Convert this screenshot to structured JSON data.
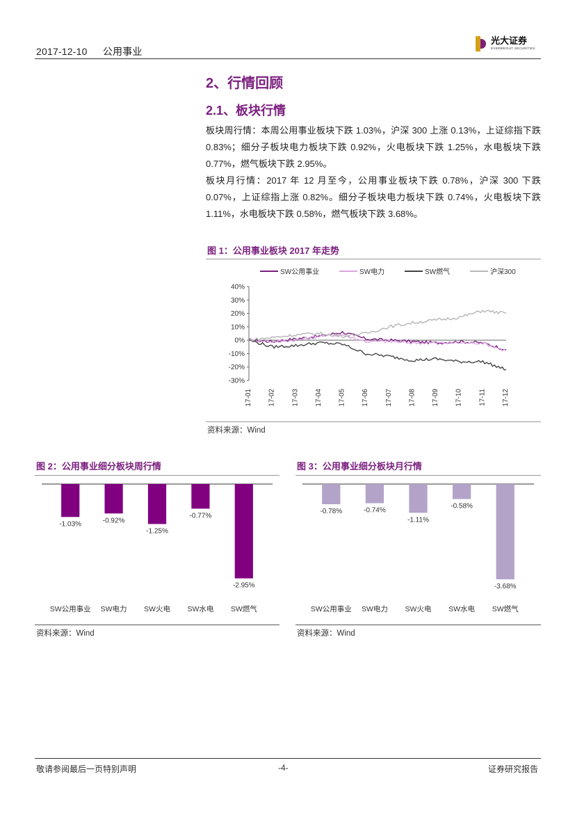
{
  "header": {
    "date": "2017-12-10",
    "category": "公用事业",
    "logo_cn": "光大证券",
    "logo_en": "EVERBRIGHT SECURITIES"
  },
  "section": {
    "title": "2、行情回顾",
    "subtitle": "2.1、板块行情",
    "para1": "板块周行情：本周公用事业板块下跌 1.03%，沪深 300 上涨 0.13%，上证综指下跌 0.83%；细分子板块电力板块下跌 0.92%，火电板块下跌 1.25%，水电板块下跌 0.77%，燃气板块下跌 2.95%。",
    "para2": "板块月行情：2017 年 12 月至今，公用事业板块下跌 0.78%，沪深 300 下跌 0.07%，上证综指上涨 0.82%。细分子板块电力板块下跌 0.74%，火电板块下跌 1.11%，水电板块下跌 0.58%，燃气板块下跌 3.68%。"
  },
  "figure1": {
    "title": "图 1：公用事业板块 2017 年走势",
    "source": "资料来源：Wind"
  },
  "figure2": {
    "title": "图 2：公用事业细分板块周行情",
    "source": "资料来源：Wind"
  },
  "figure3": {
    "title": "图 3：公用事业细分板块月行情",
    "source": "资料来源：Wind"
  },
  "footer": {
    "left": "敬请参阅最后一页特别声明",
    "page": "-4-",
    "right": "证券研究报告"
  },
  "colors": {
    "accent": "#7b1f7f",
    "sw_utility": "#7b1f7f",
    "sw_power": "#d9a6e0",
    "sw_gas": "#444444",
    "hs300": "#b5b5b5",
    "bar_week": "#800080",
    "bar_month": "#b3a3c9"
  },
  "chart_data": [
    {
      "type": "line",
      "title": "图 1：公用事业板块 2017 年走势",
      "ylim": [
        -30,
        40
      ],
      "yticks": [
        "40%",
        "30%",
        "20%",
        "10%",
        "0%",
        "-10%",
        "-20%",
        "-30%"
      ],
      "x": [
        "17-01",
        "17-02",
        "17-03",
        "17-04",
        "17-05",
        "17-06",
        "17-07",
        "17-08",
        "17-09",
        "17-10",
        "17-11",
        "17-12"
      ],
      "series": [
        {
          "name": "SW公用事业",
          "values": [
            0,
            -1,
            1,
            3,
            6,
            1,
            0,
            -1,
            -2,
            -1,
            -2,
            -7
          ]
        },
        {
          "name": "SW电力",
          "values": [
            0,
            -1,
            0,
            3,
            4,
            -1,
            -1,
            -2,
            -2,
            -2,
            -2,
            -8
          ]
        },
        {
          "name": "SW燃气",
          "values": [
            0,
            -5,
            -4,
            -2,
            -3,
            -10,
            -12,
            -15,
            -14,
            -16,
            -16,
            -22
          ]
        },
        {
          "name": "沪深300",
          "values": [
            0,
            2,
            4,
            5,
            3,
            5,
            10,
            13,
            15,
            17,
            22,
            20
          ]
        }
      ]
    },
    {
      "type": "bar",
      "title": "图 2：公用事业细分板块周行情",
      "categories": [
        "SW公用事业",
        "SW电力",
        "SW火电",
        "SW水电",
        "SW燃气"
      ],
      "values": [
        -1.03,
        -0.92,
        -1.25,
        -0.77,
        -2.95
      ],
      "labels": [
        "-1.03%",
        "-0.92%",
        "-1.25%",
        "-0.77%",
        "-2.95%"
      ]
    },
    {
      "type": "bar",
      "title": "图 3：公用事业细分板块月行情",
      "categories": [
        "SW公用事业",
        "SW电力",
        "SW火电",
        "SW水电",
        "SW燃气"
      ],
      "values": [
        -0.78,
        -0.74,
        -1.11,
        -0.58,
        -3.68
      ],
      "labels": [
        "-0.78%",
        "-0.74%",
        "-1.11%",
        "-0.58%",
        "-3.68%"
      ]
    }
  ]
}
